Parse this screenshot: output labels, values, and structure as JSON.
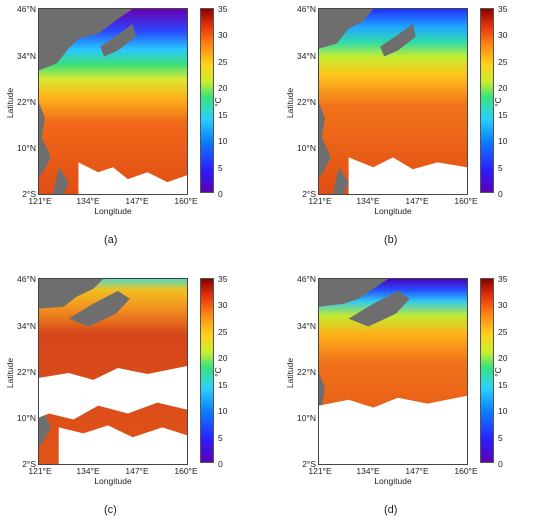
{
  "axes": {
    "ylabel": "Latitude",
    "xlabel": "Longitude",
    "yticks": [
      "46°N",
      "34°N",
      "22°N",
      "10°N",
      "2°S"
    ],
    "xticks": [
      "121°E",
      "134°E",
      "147°E",
      "160°E"
    ],
    "colorbar_ticks": [
      "35",
      "30",
      "25",
      "20",
      "15",
      "10",
      "5",
      "0"
    ],
    "colorbar_unit": "°C"
  },
  "panels": [
    {
      "label": "(a)",
      "cloud_cover": "low"
    },
    {
      "label": "(b)",
      "cloud_cover": "low"
    },
    {
      "label": "(c)",
      "cloud_cover": "high"
    },
    {
      "label": "(d)",
      "cloud_cover": "medium"
    }
  ],
  "colors": {
    "land": "#6e6e6e",
    "cloud": "#ffffff",
    "warm_sst": "#d2441a"
  }
}
